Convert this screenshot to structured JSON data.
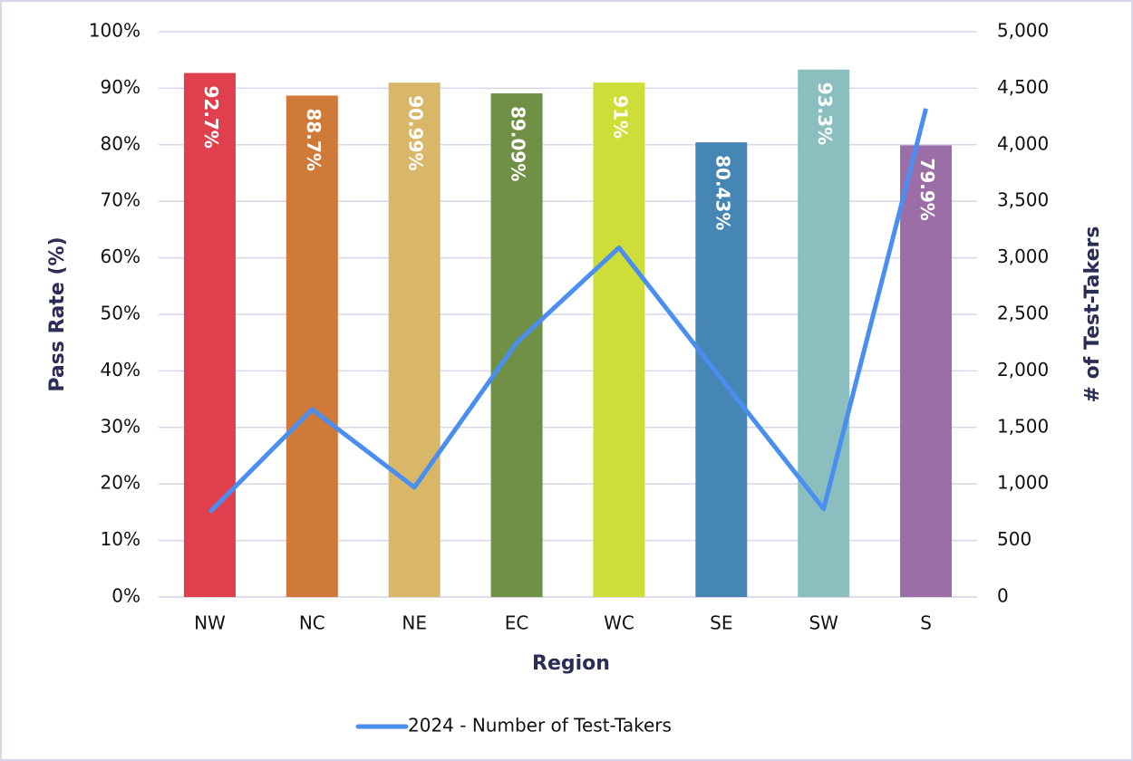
{
  "chart_data": {
    "type": "bar",
    "categories": [
      "NW",
      "NC",
      "NE",
      "EC",
      "WC",
      "SE",
      "SW",
      "S"
    ],
    "x_label": "Region",
    "y_label": "Pass Rate (%)",
    "y2_label": "# of Test-Takers",
    "series": [
      {
        "type": "bar",
        "colors": [
          "#e0404e",
          "#cf7a38",
          "#d8b768",
          "#6f9045",
          "#cedd37",
          "#4686b5",
          "#8bbfbf",
          "#9b6ea7"
        ],
        "values": [
          92.7,
          88.7,
          90.99,
          89.09,
          91,
          80.43,
          93.3,
          79.9
        ],
        "value_labels": [
          "92.7%",
          "88.7%",
          "90.99%",
          "89.09%",
          "91%",
          "80.43%",
          "93.3%",
          "79.9%"
        ]
      },
      {
        "type": "line",
        "name": "2024 - Number of Test-Takers",
        "color": "#4a8ef0",
        "axis": "y2",
        "values": [
          750,
          1660,
          970,
          2250,
          3090,
          1930,
          780,
          4320
        ]
      }
    ],
    "ylim": [
      0,
      100
    ],
    "yticks": [
      {
        "value": 0,
        "label": "0%"
      },
      {
        "value": 10,
        "label": "10%"
      },
      {
        "value": 20,
        "label": "20%"
      },
      {
        "value": 30,
        "label": "30%"
      },
      {
        "value": 40,
        "label": "40%"
      },
      {
        "value": 50,
        "label": "50%"
      },
      {
        "value": 60,
        "label": "60%"
      },
      {
        "value": 70,
        "label": "70%"
      },
      {
        "value": 80,
        "label": "80%"
      },
      {
        "value": 90,
        "label": "90%"
      },
      {
        "value": 100,
        "label": "100%"
      }
    ],
    "y2lim": [
      0,
      5000
    ],
    "y2ticks": [
      0,
      500,
      {
        "value": 1000,
        "label": "1,000"
      },
      {
        "value": 1500,
        "label": "1,500"
      },
      {
        "value": 2000,
        "label": "2,000"
      },
      {
        "value": 2500,
        "label": "2,500"
      },
      {
        "value": 3000,
        "label": "3,000"
      },
      {
        "value": 3500,
        "label": "3,500"
      },
      {
        "value": 4000,
        "label": "4,000"
      },
      {
        "value": 4500,
        "label": "4,500"
      },
      {
        "value": 5000,
        "label": "5,000"
      }
    ],
    "grid": true,
    "legend": "bottom"
  }
}
